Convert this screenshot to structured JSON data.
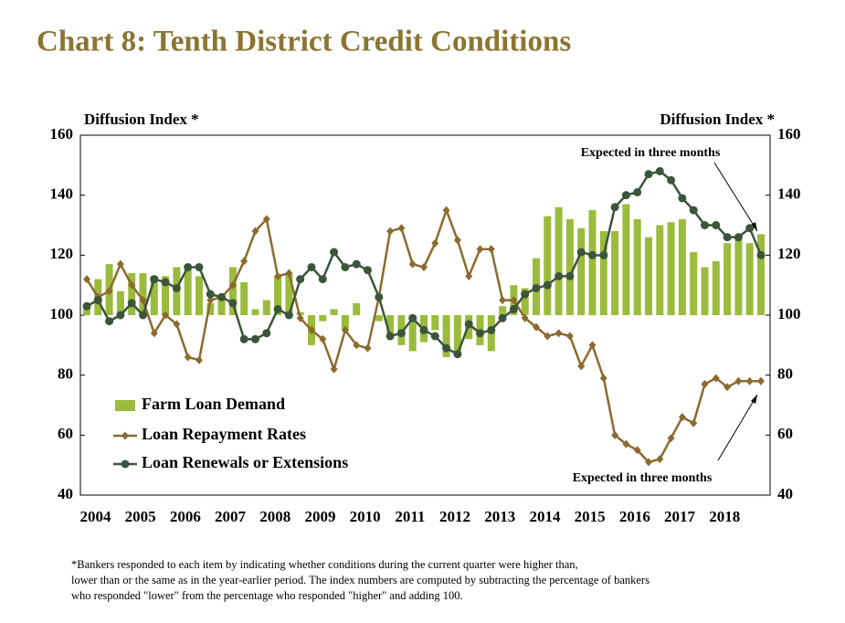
{
  "chart_data": {
    "type": "bar-line",
    "title": "Chart 8: Tenth District Credit Conditions",
    "ylabel": "Diffusion Index *",
    "y2label": "Diffusion Index *",
    "categories": [
      "2004",
      null,
      null,
      null,
      "2005",
      null,
      null,
      null,
      "2006",
      null,
      null,
      null,
      "2007",
      null,
      null,
      null,
      "2008",
      null,
      null,
      null,
      "2009",
      null,
      null,
      null,
      "2010",
      null,
      null,
      null,
      "2011",
      null,
      null,
      null,
      "2012",
      null,
      null,
      null,
      "2013",
      null,
      null,
      null,
      "2014",
      null,
      null,
      null,
      "2015",
      null,
      null,
      null,
      "2016",
      null,
      null,
      null,
      "2017",
      null,
      null,
      null,
      "2018",
      null,
      null,
      null,
      null
    ],
    "series": [
      {
        "name": "Farm Loan Demand",
        "kind": "bar",
        "color": "#9bbb3c",
        "values": [
          103,
          112,
          117,
          108,
          114,
          114,
          113,
          113,
          116,
          116,
          113,
          104,
          106,
          116,
          111,
          102,
          105,
          113,
          114,
          101,
          90,
          98,
          102,
          95,
          104,
          100,
          98,
          94,
          90,
          88,
          91,
          95,
          86,
          87,
          92,
          90,
          88,
          103,
          110,
          109,
          119,
          133,
          136,
          132,
          129,
          135,
          128,
          128,
          137,
          132,
          126,
          130,
          131,
          132,
          121,
          116,
          118,
          124,
          126,
          124,
          127
        ]
      },
      {
        "name": "Loan Repayment Rates",
        "kind": "line",
        "marker": "diamond",
        "color": "#8c6a2f",
        "values": [
          112,
          106,
          108,
          117,
          110,
          105,
          94,
          100,
          97,
          86,
          85,
          105,
          106,
          110,
          118,
          128,
          132,
          113,
          114,
          99,
          95,
          92,
          82,
          95,
          90,
          89,
          106,
          128,
          129,
          117,
          116,
          124,
          135,
          125,
          113,
          122,
          122,
          105,
          105,
          99,
          96,
          93,
          94,
          93,
          83,
          90,
          79,
          60,
          57,
          55,
          51,
          52,
          59,
          66,
          64,
          77,
          79,
          76,
          78,
          78,
          78
        ]
      },
      {
        "name": "Loan Renewals or Extensions",
        "kind": "line",
        "marker": "circle",
        "color": "#3b553a",
        "values": [
          103,
          105,
          98,
          100,
          104,
          100,
          112,
          111,
          109,
          116,
          116,
          107,
          106,
          104,
          92,
          92,
          94,
          102,
          100,
          112,
          116,
          112,
          121,
          116,
          117,
          115,
          106,
          93,
          94,
          99,
          95,
          93,
          89,
          87,
          97,
          94,
          95,
          99,
          102,
          107,
          109,
          110,
          113,
          113,
          121,
          120,
          120,
          136,
          140,
          141,
          147,
          148,
          145,
          139,
          135,
          130,
          130,
          126,
          126,
          129,
          120
        ]
      }
    ],
    "ylim": [
      40,
      160
    ],
    "yticks": [
      40,
      60,
      80,
      100,
      120,
      140,
      160
    ],
    "y2lim": [
      40,
      160
    ],
    "y2ticks": [
      40,
      60,
      80,
      100,
      120,
      140,
      160
    ],
    "annotations": [
      "Expected in three months",
      "Expected in three months"
    ],
    "footnote": [
      "*Bankers responded to each item by indicating whether conditions during the current quarter were higher than,",
      "lower than or the same as in the year-earlier period.  The index numbers are computed by subtracting the percentage of bankers",
      "who responded \"lower\" from the percentage who responded \"higher\" and adding 100."
    ]
  }
}
